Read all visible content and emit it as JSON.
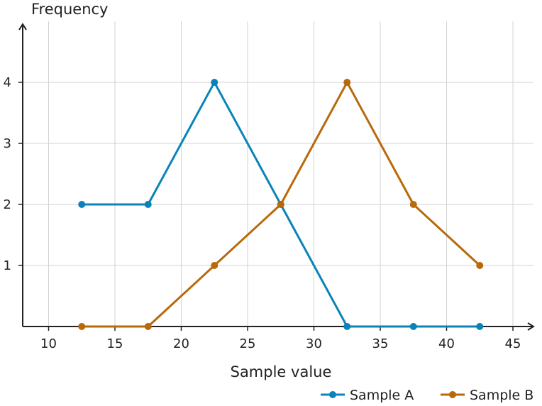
{
  "chart_data": {
    "type": "line",
    "xlabel": "Sample value",
    "ylabel": "Frequency",
    "xlim": [
      8,
      46
    ],
    "ylim": [
      0,
      5
    ],
    "x_ticks": [
      10,
      15,
      20,
      25,
      30,
      35,
      40,
      45
    ],
    "y_ticks": [
      1,
      2,
      3,
      4
    ],
    "x": [
      12.5,
      17.5,
      22.5,
      27.5,
      32.5,
      37.5,
      42.5
    ],
    "grid": true,
    "legend_position": "bottom-right",
    "series": [
      {
        "name": "Sample A",
        "color": "#0a84b8",
        "values": [
          2,
          2,
          4,
          2,
          0,
          0,
          0
        ]
      },
      {
        "name": "Sample B",
        "color": "#b8690a",
        "values": [
          0,
          0,
          1,
          2,
          4,
          2,
          1
        ]
      }
    ]
  }
}
